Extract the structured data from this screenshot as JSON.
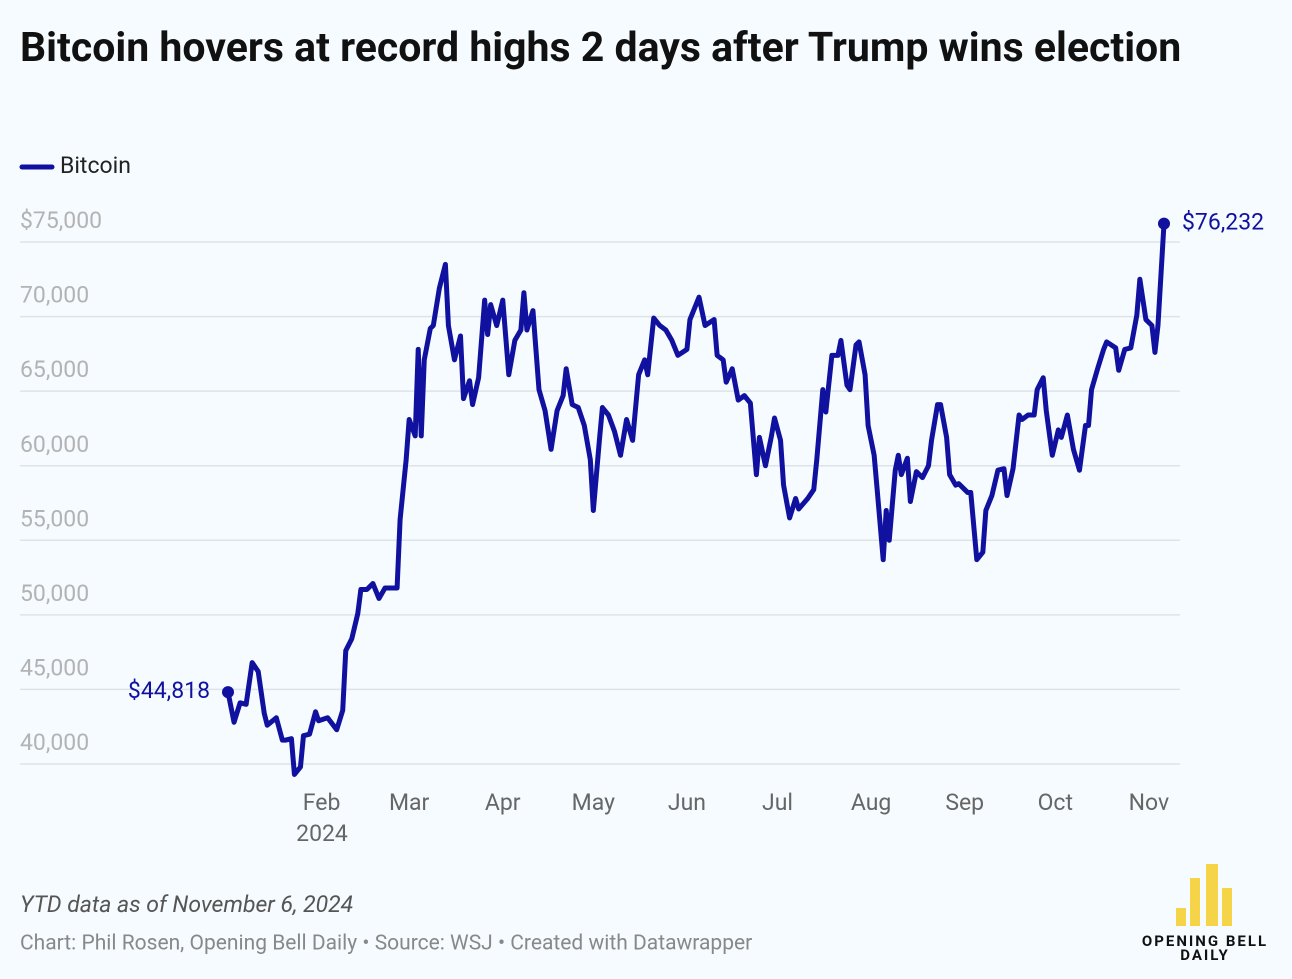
{
  "chart_data": {
    "type": "line",
    "title": "Bitcoin hovers at record highs 2 days after Trump wins election",
    "note": "YTD data as of November 6, 2024",
    "source": "Chart: Phil Rosen, Opening Bell Daily • Source: WSJ • Created with Datawrapper",
    "logo": "OPENING BELL DAILY",
    "year_label": "2024",
    "legend": "top-left",
    "grid": true,
    "xlim": [
      1,
      311
    ],
    "ylim": [
      40000,
      75000
    ],
    "xticks": [
      {
        "value": 32,
        "label": "Feb"
      },
      {
        "value": 61,
        "label": "Mar"
      },
      {
        "value": 92,
        "label": "Apr"
      },
      {
        "value": 122,
        "label": "May"
      },
      {
        "value": 153,
        "label": "Jun"
      },
      {
        "value": 183,
        "label": "Jul"
      },
      {
        "value": 214,
        "label": "Aug"
      },
      {
        "value": 245,
        "label": "Sep"
      },
      {
        "value": 275,
        "label": "Oct"
      },
      {
        "value": 306,
        "label": "Nov"
      }
    ],
    "yticks": [
      {
        "value": 75000,
        "label": "$75,000"
      },
      {
        "value": 70000,
        "label": "70,000"
      },
      {
        "value": 65000,
        "label": "65,000"
      },
      {
        "value": 60000,
        "label": "60,000"
      },
      {
        "value": 55000,
        "label": "55,000"
      },
      {
        "value": 50000,
        "label": "50,000"
      },
      {
        "value": 45000,
        "label": "45,000"
      },
      {
        "value": 40000,
        "label": "40,000"
      }
    ],
    "x": [
      1,
      3,
      5,
      7,
      9,
      11,
      13,
      14,
      17,
      19,
      20,
      22,
      23,
      25,
      26,
      28,
      30,
      31,
      34,
      37,
      39,
      40,
      42,
      44,
      45,
      47,
      49,
      51,
      53,
      57,
      58,
      60,
      61,
      63,
      64,
      65,
      66,
      68,
      69,
      71,
      73,
      74,
      76,
      78,
      79,
      81,
      82,
      84,
      86,
      87,
      88,
      90,
      92,
      94,
      96,
      98,
      99,
      100,
      102,
      104,
      106,
      108,
      110,
      112,
      113,
      115,
      117,
      119,
      121,
      122,
      124,
      125,
      127,
      129,
      131,
      133,
      135,
      137,
      139,
      140,
      142,
      144,
      146,
      148,
      150,
      153,
      154,
      157,
      159,
      162,
      163,
      165,
      166,
      168,
      170,
      172,
      174,
      176,
      177,
      179,
      181,
      182,
      184,
      185,
      187,
      189,
      190,
      193,
      195,
      196,
      198,
      199,
      201,
      203,
      204,
      206,
      207,
      209,
      210,
      212,
      213,
      215,
      216,
      218,
      219,
      220,
      222,
      223,
      224,
      226,
      227,
      229,
      231,
      233,
      234,
      236,
      237,
      239,
      240,
      242,
      243,
      246,
      247,
      249,
      251,
      252,
      254,
      256,
      258,
      259,
      261,
      263,
      264,
      266,
      268,
      269,
      271,
      272,
      274,
      276,
      277,
      279,
      281,
      283,
      285,
      286,
      287,
      289,
      291,
      292,
      295,
      296,
      298,
      300,
      302,
      303,
      305,
      307,
      308,
      309,
      311
    ],
    "series": [
      {
        "name": "Bitcoin",
        "color": "#1111a0",
        "values": [
          44818,
          42800,
          44100,
          44000,
          46800,
          46200,
          43400,
          42600,
          43100,
          41600,
          41600,
          41700,
          39300,
          39800,
          41900,
          42000,
          43500,
          42900,
          43100,
          42300,
          43600,
          47600,
          48400,
          50100,
          51700,
          51700,
          52100,
          51100,
          51800,
          51800,
          56400,
          60400,
          63100,
          62000,
          67800,
          62000,
          67100,
          69200,
          69400,
          71900,
          73500,
          69400,
          67100,
          68700,
          64500,
          65700,
          64100,
          65900,
          71100,
          68800,
          70800,
          69400,
          71100,
          66100,
          68400,
          69100,
          71600,
          69100,
          70400,
          65100,
          63700,
          61100,
          63700,
          64700,
          66500,
          64100,
          63900,
          62700,
          60400,
          57000,
          61700,
          63900,
          63400,
          62300,
          60700,
          63100,
          61700,
          66100,
          67100,
          66100,
          69900,
          69400,
          69100,
          68400,
          67400,
          67800,
          69800,
          71300,
          69400,
          69800,
          67400,
          67100,
          65600,
          66500,
          64400,
          64700,
          64200,
          59400,
          61900,
          60000,
          62000,
          63200,
          61700,
          58700,
          56500,
          57800,
          57100,
          57800,
          58400,
          60400,
          65100,
          63600,
          67400,
          67400,
          68400,
          65400,
          65100,
          68100,
          68300,
          66100,
          62700,
          60700,
          58400,
          53700,
          57000,
          55000,
          59700,
          60700,
          59400,
          60500,
          57600,
          59600,
          59200,
          60000,
          61700,
          64100,
          64100,
          61900,
          59400,
          58700,
          58800,
          58200,
          58200,
          53700,
          54200,
          57000,
          58000,
          59700,
          59800,
          58000,
          59800,
          63400,
          63100,
          63400,
          63400,
          65100,
          65900,
          63700,
          60700,
          62400,
          61900,
          63400,
          61100,
          59700,
          62700,
          62700,
          65100,
          66500,
          67800,
          68300,
          67900,
          66400,
          67800,
          67900,
          70100,
          72500,
          69800,
          69400,
          67600,
          69400,
          76232
        ],
        "value_labels": [
          "$44,818",
          null,
          null,
          null,
          null,
          null,
          null,
          null,
          null,
          null,
          null,
          null,
          null,
          null,
          null,
          null,
          null,
          null,
          null,
          null,
          null,
          null,
          null,
          null,
          null,
          null,
          null,
          null,
          null,
          null,
          null,
          null,
          null,
          null,
          null,
          null,
          null,
          null,
          null,
          null,
          null,
          null,
          null,
          null,
          null,
          null,
          null,
          null,
          null,
          null,
          null,
          null,
          null,
          null,
          null,
          null,
          null,
          null,
          null,
          null,
          null,
          null,
          null,
          null,
          null,
          null,
          null,
          null,
          null,
          null,
          null,
          null,
          null,
          null,
          null,
          null,
          null,
          null,
          null,
          null,
          null,
          null,
          null,
          null,
          null,
          null,
          null,
          null,
          null,
          null,
          null,
          null,
          null,
          null,
          null,
          null,
          null,
          null,
          null,
          null,
          null,
          null,
          null,
          null,
          null,
          null,
          null,
          null,
          null,
          null,
          null,
          null,
          null,
          null,
          null,
          null,
          null,
          null,
          null,
          null,
          null,
          null,
          null,
          null,
          null,
          null,
          null,
          null,
          null,
          null,
          null,
          null,
          null,
          null,
          null,
          null,
          null,
          null,
          null,
          null,
          null,
          null,
          null,
          null,
          null,
          null,
          null,
          null,
          null,
          null,
          null,
          null,
          null,
          null,
          null,
          null,
          null,
          null,
          null,
          null,
          null,
          null,
          null,
          null,
          null,
          null,
          null,
          null,
          null,
          null,
          null,
          null,
          null,
          null,
          null,
          null,
          null,
          null,
          null,
          null,
          "$76,232"
        ]
      }
    ]
  }
}
